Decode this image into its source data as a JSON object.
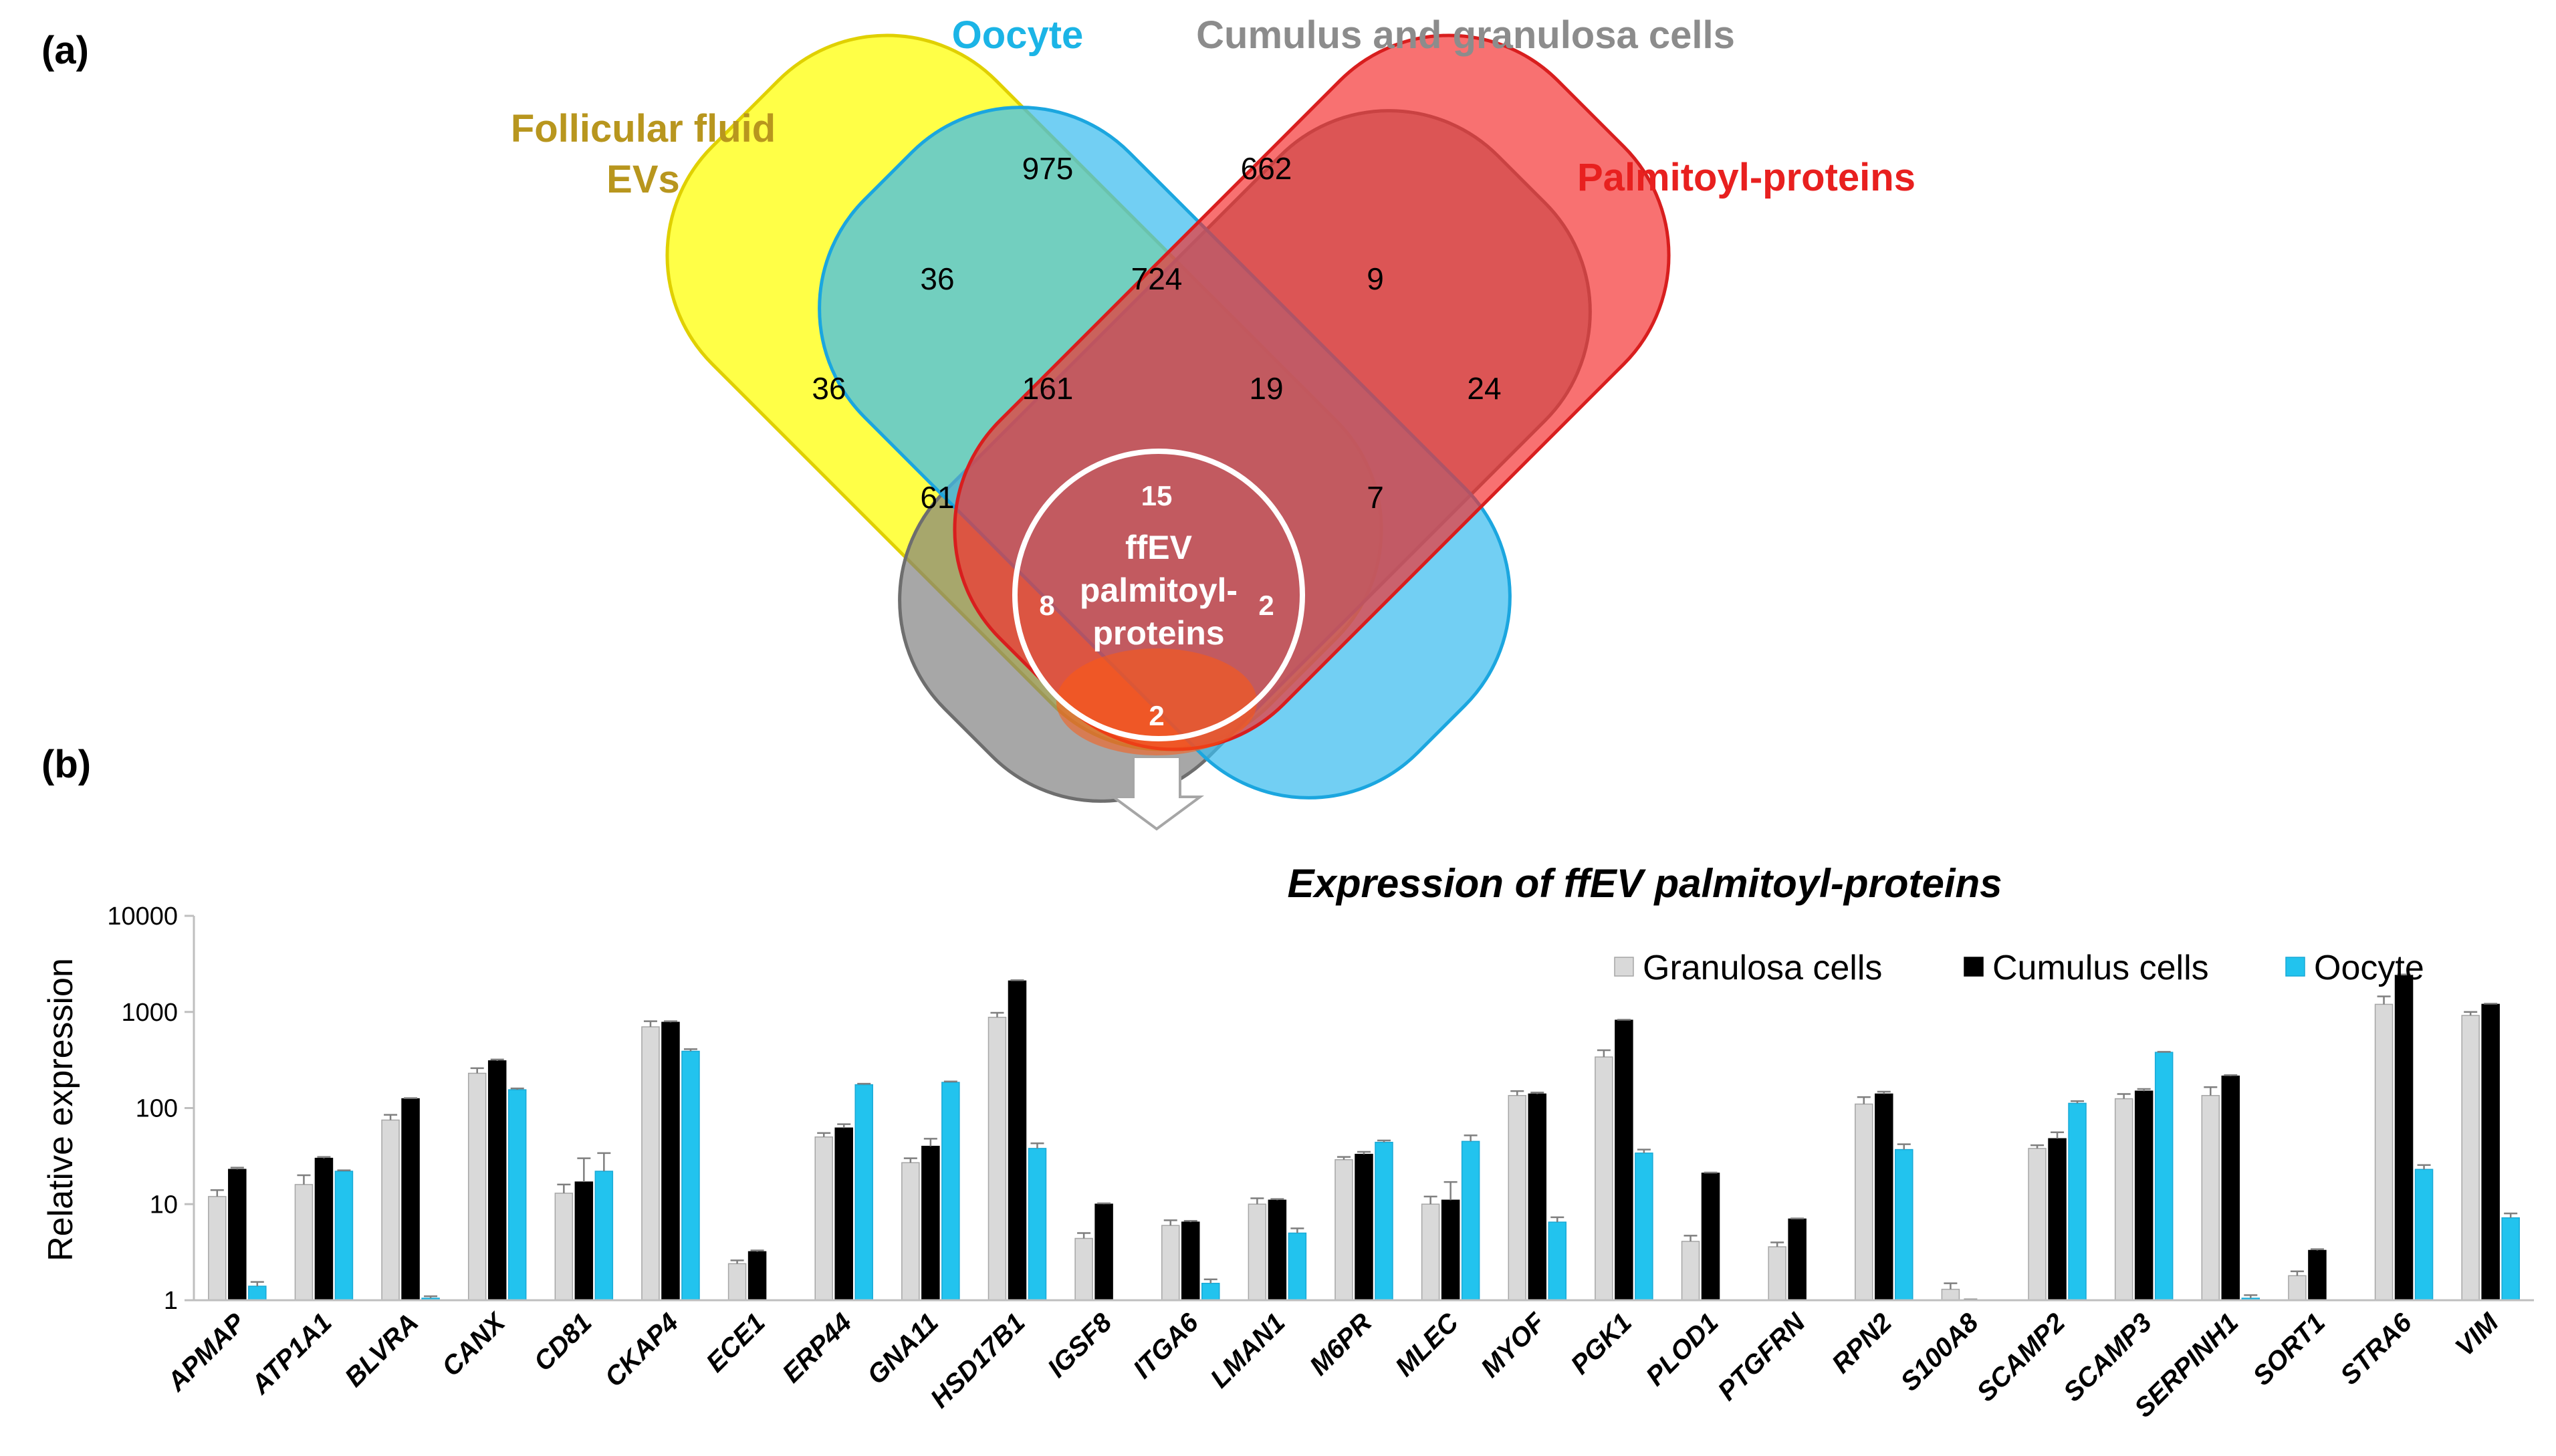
{
  "panel_a": {
    "label": "(a)",
    "sets": [
      {
        "name": "Follicular fluid\nEVs",
        "color": "#b8961e",
        "fill": "#ffff00"
      },
      {
        "name": "Oocyte",
        "color": "#1bb4e6",
        "fill": "#3bbcef"
      },
      {
        "name": "Cumulus and granulosa cells",
        "color": "#8c8c8c",
        "fill": "#8e8e8e"
      },
      {
        "name": "Palmitoyl-proteins",
        "color": "#e8201f",
        "fill": "#f23a3a"
      }
    ],
    "regions": [
      "975",
      "662",
      "36",
      "724",
      "9",
      "36",
      "161",
      "19",
      "24",
      "61",
      "15",
      "7",
      "8",
      "2",
      "2"
    ],
    "circle_label": [
      "ffEV",
      "palmitoyl-",
      "proteins"
    ]
  },
  "panel_b": {
    "label": "(b)"
  },
  "chart_data": {
    "type": "bar",
    "title": "Expression of ffEV palmitoyl-proteins",
    "xlabel": "",
    "ylabel": "Relative expression",
    "yscale": "log",
    "ylim": [
      1,
      10000
    ],
    "yticks": [
      "1",
      "10",
      "100",
      "1000",
      "10000"
    ],
    "legend_position": "top-right",
    "categories": [
      "APMAP",
      "ATP1A1",
      "BLVRA",
      "CANX",
      "CD81",
      "CKAP4",
      "ECE1",
      "ERP44",
      "GNA11",
      "HSD17B1",
      "IGSF8",
      "ITGA6",
      "LMAN1",
      "M6PR",
      "MLEC",
      "MYOF",
      "PGK1",
      "PLOD1",
      "PTGFRN",
      "RPN2",
      "S100A8",
      "SCAMP2",
      "SCAMP3",
      "SERPINH1",
      "SORT1",
      "STRA6",
      "VIM"
    ],
    "series": [
      {
        "name": "Granulosa cells",
        "color": "#d9d9d9",
        "values": [
          12,
          16,
          75,
          230,
          13,
          700,
          2.4,
          50,
          27,
          880,
          4.4,
          6,
          10,
          29,
          10,
          135,
          340,
          4.1,
          3.6,
          110,
          1.3,
          38,
          125,
          135,
          1.8,
          1200,
          920
        ],
        "errors": [
          2,
          4,
          10,
          30,
          3,
          100,
          0.2,
          5,
          3,
          100,
          0.6,
          0.8,
          1.5,
          2,
          2,
          15,
          60,
          0.6,
          0.4,
          20,
          0.2,
          3,
          15,
          30,
          0.2,
          250,
          80
        ]
      },
      {
        "name": "Cumulus cells",
        "color": "#000000",
        "values": [
          23,
          30,
          125,
          310,
          17,
          780,
          3.2,
          62,
          40,
          2100,
          10,
          6.5,
          11,
          33,
          11,
          140,
          820,
          21,
          7,
          140,
          1,
          48,
          150,
          215,
          3.3,
          2400,
          1200
        ],
        "errors": [
          1,
          1,
          2,
          10,
          13,
          20,
          0.1,
          6,
          8,
          40,
          0.2,
          0.2,
          0.3,
          2,
          6,
          5,
          10,
          0.3,
          0.1,
          8,
          0.02,
          8,
          8,
          5,
          0.1,
          50,
          20
        ]
      },
      {
        "name": "Oocyte",
        "color": "#22c3ee",
        "values": [
          1.4,
          22,
          1.05,
          155,
          22,
          390,
          1,
          175,
          185,
          38,
          1,
          1.5,
          5,
          44,
          45,
          6.5,
          34,
          1,
          1,
          37,
          1,
          112,
          380,
          1.05,
          1,
          23,
          7.2
        ],
        "errors": [
          0.15,
          0.5,
          0.05,
          5,
          12,
          20,
          0,
          4,
          4,
          5,
          0,
          0.15,
          0.6,
          2,
          7,
          0.8,
          3,
          0,
          0,
          5,
          0,
          6,
          5,
          0.08,
          0,
          2.5,
          0.8
        ]
      }
    ]
  }
}
